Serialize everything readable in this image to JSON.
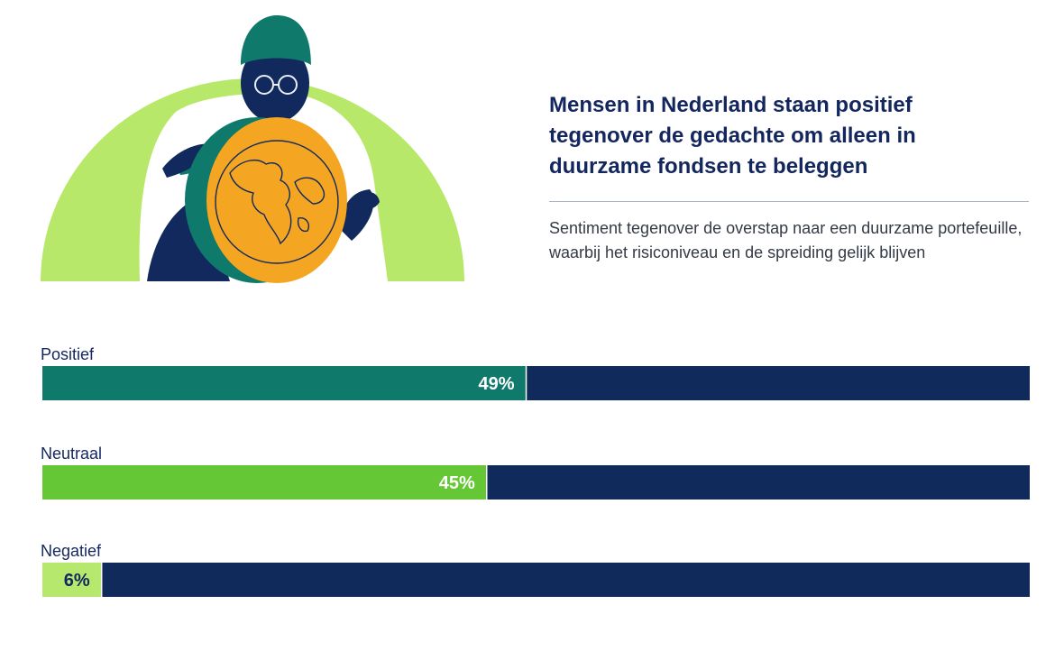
{
  "title": "Mensen in Nederland staan positief tegenover de gedachte om alleen in duurzame fondsen te beleggen",
  "subtitle": "Sentiment tegenover de overstap naar een duurzame portefeuille, waarbij het risiconiveau en de spreiding gelijk blijven",
  "colors": {
    "track": "#102a5c",
    "title": "#13275e"
  },
  "chart_data": {
    "type": "bar",
    "orientation": "horizontal",
    "categories": [
      "Positief",
      "Neutraal",
      "Negatief"
    ],
    "values": [
      49,
      45,
      6
    ],
    "value_labels": [
      "49%",
      "45%",
      "6%"
    ],
    "bar_colors": [
      "#0f7a6b",
      "#66c736",
      "#b7e86e"
    ],
    "value_label_colors": [
      "#ffffff",
      "#ffffff",
      "#13275e"
    ],
    "xlim": [
      0,
      100
    ],
    "grid": false,
    "legend": "none"
  }
}
